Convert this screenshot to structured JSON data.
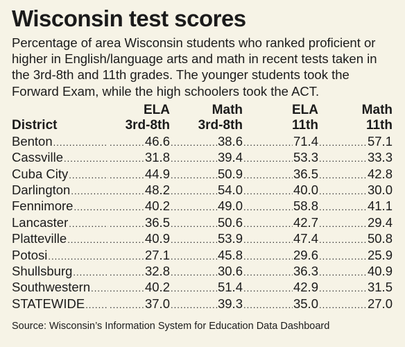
{
  "title": "Wisconsin test scores",
  "intro": "Percentage of area Wisconsin students who ranked proficient or higher in English/language arts and math in recent tests taken in the 3rd-8th and 11th grades. The younger students took the Forward Exam, while the high schoolers took the ACT.",
  "headers": {
    "district": "District",
    "c1": [
      "ELA",
      "3rd-8th"
    ],
    "c2": [
      "Math",
      "3rd-8th"
    ],
    "c3": [
      "ELA",
      "11th"
    ],
    "c4": [
      "Math",
      "11th"
    ]
  },
  "rows": [
    {
      "district": "Benton",
      "ela38": "46.6",
      "math38": "38.6",
      "ela11": "71.4",
      "math11": "57.1"
    },
    {
      "district": "Cassville",
      "ela38": "31.8",
      "math38": "39.4",
      "ela11": "53.3",
      "math11": "33.3"
    },
    {
      "district": "Cuba City",
      "ela38": "44.9",
      "math38": "50.9",
      "ela11": "36.5",
      "math11": "42.8"
    },
    {
      "district": "Darlington",
      "ela38": "48.2",
      "math38": "54.0",
      "ela11": "40.0",
      "math11": "30.0"
    },
    {
      "district": "Fennimore",
      "ela38": "40.2",
      "math38": "49.0",
      "ela11": "58.8",
      "math11": "41.1"
    },
    {
      "district": "Lancaster",
      "ela38": "36.5",
      "math38": "50.6",
      "ela11": "42.7",
      "math11": "29.4"
    },
    {
      "district": "Platteville",
      "ela38": "40.9",
      "math38": "53.9",
      "ela11": "47.4",
      "math11": "50.8"
    },
    {
      "district": "Potosi",
      "ela38": "27.1",
      "math38": "45.8",
      "ela11": "29.6",
      "math11": "25.9"
    },
    {
      "district": "Shullsburg",
      "ela38": "32.8",
      "math38": "30.6",
      "ela11": "36.3",
      "math11": "40.9"
    },
    {
      "district": "Southwestern",
      "ela38": "40.2",
      "math38": "51.4",
      "ela11": "42.9",
      "math11": "31.5"
    },
    {
      "district": "STATEWIDE",
      "ela38": "37.0",
      "math38": "39.3",
      "ela11": "35.0",
      "math11": "27.0"
    }
  ],
  "source": "Source: Wisconsin’s Information System for Education Data Dashboard"
}
